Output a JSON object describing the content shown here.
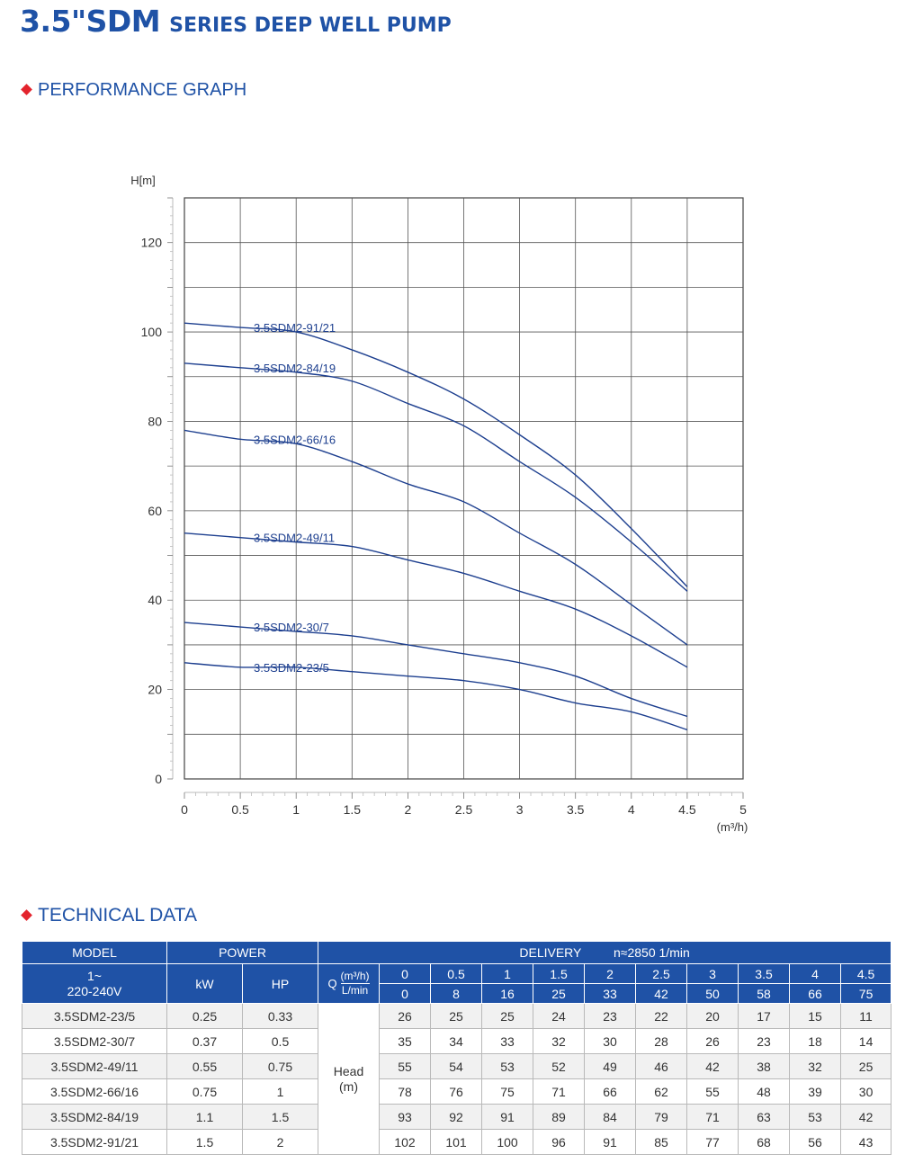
{
  "header": {
    "title_main": "3.5\"SDM",
    "title_sub": "SERIES DEEP WELL PUMP"
  },
  "sections": {
    "performance": "PERFORMANCE GRAPH",
    "technical": "TECHNICAL DATA"
  },
  "chart_data": {
    "type": "line",
    "ylabel": "H[m]",
    "xlabel": "(m³/h)",
    "xlim": [
      0,
      5
    ],
    "ylim": [
      0,
      130
    ],
    "x_ticks": [
      "0",
      "0.5",
      "1",
      "1.5",
      "2",
      "2.5",
      "3",
      "3.5",
      "4",
      "4.5",
      "5"
    ],
    "y_ticks": [
      "0",
      "20",
      "40",
      "60",
      "80",
      "100",
      "120"
    ],
    "grid": true,
    "line_color": "#1d3f8f",
    "x": [
      0,
      0.5,
      1,
      1.5,
      2,
      2.5,
      3,
      3.5,
      4,
      4.5
    ],
    "series": [
      {
        "name": "3.5SDM2-91/21",
        "values": [
          102,
          101,
          100,
          96,
          91,
          85,
          77,
          68,
          56,
          43
        ]
      },
      {
        "name": "3.5SDM2-84/19",
        "values": [
          93,
          92,
          91,
          89,
          84,
          79,
          71,
          63,
          53,
          42
        ]
      },
      {
        "name": "3.5SDM2-66/16",
        "values": [
          78,
          76,
          75,
          71,
          66,
          62,
          55,
          48,
          39,
          30
        ]
      },
      {
        "name": "3.5SDM2-49/11",
        "values": [
          55,
          54,
          53,
          52,
          49,
          46,
          42,
          38,
          32,
          25
        ]
      },
      {
        "name": "3.5SDM2-30/7",
        "values": [
          35,
          34,
          33,
          32,
          30,
          28,
          26,
          23,
          18,
          14
        ]
      },
      {
        "name": "3.5SDM2-23/5",
        "values": [
          26,
          25,
          25,
          24,
          23,
          22,
          20,
          17,
          15,
          11
        ]
      }
    ]
  },
  "table": {
    "model_header": "MODEL",
    "power_header": "POWER",
    "delivery_header": "DELIVERY",
    "speed": "n≈2850 1/min",
    "voltage_line1": "1~",
    "voltage_line2": "220-240V",
    "kw_label": "kW",
    "hp_label": "HP",
    "q_label": "Q",
    "q_unit_m3": "(m³/h)",
    "q_unit_lmin": "L/min",
    "head_label_line1": "Head",
    "head_label_line2": "(m)",
    "flow_m3h": [
      "0",
      "0.5",
      "1",
      "1.5",
      "2",
      "2.5",
      "3",
      "3.5",
      "4",
      "4.5"
    ],
    "flow_lmin": [
      "0",
      "8",
      "16",
      "25",
      "33",
      "42",
      "50",
      "58",
      "66",
      "75"
    ],
    "rows": [
      {
        "model": "3.5SDM2-23/5",
        "kw": "0.25",
        "hp": "0.33",
        "head": [
          "26",
          "25",
          "25",
          "24",
          "23",
          "22",
          "20",
          "17",
          "15",
          "11"
        ]
      },
      {
        "model": "3.5SDM2-30/7",
        "kw": "0.37",
        "hp": "0.5",
        "head": [
          "35",
          "34",
          "33",
          "32",
          "30",
          "28",
          "26",
          "23",
          "18",
          "14"
        ]
      },
      {
        "model": "3.5SDM2-49/11",
        "kw": "0.55",
        "hp": "0.75",
        "head": [
          "55",
          "54",
          "53",
          "52",
          "49",
          "46",
          "42",
          "38",
          "32",
          "25"
        ]
      },
      {
        "model": "3.5SDM2-66/16",
        "kw": "0.75",
        "hp": "1",
        "head": [
          "78",
          "76",
          "75",
          "71",
          "66",
          "62",
          "55",
          "48",
          "39",
          "30"
        ]
      },
      {
        "model": "3.5SDM2-84/19",
        "kw": "1.1",
        "hp": "1.5",
        "head": [
          "93",
          "92",
          "91",
          "89",
          "84",
          "79",
          "71",
          "63",
          "53",
          "42"
        ]
      },
      {
        "model": "3.5SDM2-91/21",
        "kw": "1.5",
        "hp": "2",
        "head": [
          "102",
          "101",
          "100",
          "96",
          "91",
          "85",
          "77",
          "68",
          "56",
          "43"
        ]
      }
    ]
  }
}
